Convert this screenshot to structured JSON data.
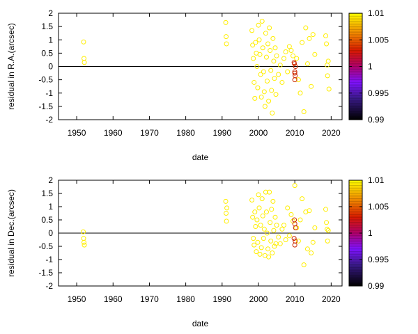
{
  "chart_data": [
    {
      "type": "scatter",
      "xlabel": "date",
      "ylabel": "residual in R.A.(arcsec)",
      "xlim": [
        1945,
        2023
      ],
      "ylim": [
        -2,
        2
      ],
      "xticks": [
        "1950",
        "1960",
        "1970",
        "1980",
        "1990",
        "2000",
        "2010",
        "2020"
      ],
      "yticks": [
        "-2",
        "-1.5",
        "-1",
        "-0.5",
        "0",
        "0.5",
        "1",
        "1.5",
        "2"
      ],
      "colorbar": {
        "min": 0.99,
        "max": 1.01,
        "ticks": [
          "0.99",
          "0.995",
          "1",
          "1.005",
          "1.01"
        ]
      },
      "series": [
        {
          "x": [
            1951.9,
            1952.0,
            1952.1,
            1991.0,
            1991.1,
            1991.2,
            1998.2,
            1998.4,
            1998.6,
            1998.8,
            1999.0,
            1999.2,
            1999.4,
            1999.6,
            1999.8,
            2000.0,
            2000.2,
            2000.4,
            2000.6,
            2000.8,
            2001.0,
            2001.2,
            2001.4,
            2001.6,
            2001.8,
            2002.0,
            2002.2,
            2002.4,
            2002.6,
            2002.8,
            2003.0,
            2003.2,
            2003.4,
            2003.6,
            2003.8,
            2004.0,
            2004.2,
            2004.4,
            2004.6,
            2004.8,
            2005.0,
            2005.5,
            2006.0,
            2006.5,
            2007.0,
            2007.5,
            2008.0,
            2008.5,
            2009.0,
            2009.5,
            2010.5,
            2011.0,
            2011.5,
            2012.0,
            2012.5,
            2013.0,
            2013.5,
            2014.0,
            2014.5,
            2015.0,
            2015.5,
            2018.5,
            2018.7,
            2018.9,
            2019.0,
            2019.2,
            2019.4
          ],
          "y": [
            0.92,
            0.3,
            0.15,
            1.65,
            1.12,
            0.85,
            1.35,
            0.8,
            0.3,
            -0.6,
            -1.2,
            0.9,
            0.5,
            0.0,
            -0.8,
            1.55,
            1.0,
            0.45,
            -0.3,
            -1.15,
            1.7,
            0.7,
            -0.2,
            -0.95,
            -1.5,
            1.25,
            0.35,
            -0.55,
            0.85,
            -1.3,
            1.45,
            0.6,
            -0.15,
            -0.9,
            -1.75,
            1.05,
            0.2,
            -0.45,
            0.7,
            -1.05,
            0.4,
            -0.3,
            0.05,
            -0.6,
            0.3,
            0.55,
            -0.2,
            0.75,
            0.6,
            0.4,
            0.3,
            -0.5,
            -1.0,
            0.9,
            -1.7,
            1.45,
            0.1,
            1.05,
            -0.75,
            1.2,
            0.45,
            1.15,
            0.85,
            0.05,
            -0.35,
            0.2,
            -0.85
          ],
          "z_level": 1.01
        },
        {
          "x": [
            2009.9,
            2010.0,
            2010.1,
            2010.0,
            2010.2,
            2009.8,
            2010.0
          ],
          "y": [
            0.1,
            -0.2,
            -0.35,
            -0.5,
            0.0,
            0.15,
            -0.25
          ],
          "z_level": 1.0
        }
      ]
    },
    {
      "type": "scatter",
      "xlabel": "date",
      "ylabel": "residual in Dec.(arcsec)",
      "xlim": [
        1945,
        2023
      ],
      "ylim": [
        -2,
        2
      ],
      "xticks": [
        "1950",
        "1960",
        "1970",
        "1980",
        "1990",
        "2000",
        "2010",
        "2020"
      ],
      "yticks": [
        "-2",
        "-1.5",
        "-1",
        "-0.5",
        "0",
        "0.5",
        "1",
        "1.5",
        "2"
      ],
      "colorbar": {
        "min": 0.99,
        "max": 1.01,
        "ticks": [
          "0.99",
          "0.995",
          "1",
          "1.005",
          "1.01"
        ]
      },
      "series": [
        {
          "x": [
            1951.8,
            1951.9,
            1952.0,
            1952.1,
            1991.0,
            1991.1,
            1991.2,
            1991.3,
            1998.2,
            1998.4,
            1998.6,
            1998.8,
            1999.0,
            1999.2,
            1999.4,
            1999.6,
            1999.8,
            2000.0,
            2000.2,
            2000.4,
            2000.6,
            2000.8,
            2001.0,
            2001.2,
            2001.4,
            2001.6,
            2001.8,
            2002.0,
            2002.2,
            2002.4,
            2002.6,
            2002.8,
            2003.0,
            2003.2,
            2003.4,
            2003.6,
            2003.8,
            2004.0,
            2004.2,
            2004.4,
            2004.6,
            2004.8,
            2005.0,
            2005.5,
            2006.0,
            2006.5,
            2007.0,
            2007.5,
            2008.0,
            2008.5,
            2009.0,
            2009.5,
            2010.0,
            2010.5,
            2011.0,
            2011.5,
            2012.0,
            2012.5,
            2013.0,
            2013.5,
            2014.0,
            2014.5,
            2015.0,
            2015.5,
            2018.5,
            2018.7,
            2018.9,
            2019.0,
            2019.2
          ],
          "y": [
            0.05,
            -0.2,
            -0.35,
            -0.45,
            1.2,
            0.75,
            0.45,
            0.95,
            1.25,
            0.6,
            -0.2,
            -0.45,
            0.8,
            0.25,
            -0.7,
            0.5,
            -0.35,
            1.45,
            0.95,
            -0.8,
            0.3,
            -0.55,
            1.3,
            0.65,
            -0.2,
            0.15,
            -0.85,
            1.55,
            0.8,
            0.0,
            -0.6,
            -0.9,
            1.55,
            0.4,
            -0.3,
            0.9,
            -0.75,
            1.2,
            0.1,
            -0.5,
            0.6,
            -0.4,
            0.3,
            -0.15,
            -0.4,
            0.15,
            0.3,
            -0.25,
            0.95,
            -0.1,
            0.7,
            0.45,
            1.8,
            0.2,
            -0.3,
            0.5,
            1.3,
            -1.2,
            0.8,
            -0.6,
            0.85,
            -0.75,
            -0.35,
            0.2,
            0.9,
            0.4,
            0.15,
            -0.3,
            0.1
          ],
          "z_level": 1.01
        },
        {
          "x": [
            2009.9,
            2010.0,
            2010.1,
            2010.0,
            2010.2,
            2009.8
          ],
          "y": [
            0.5,
            0.35,
            -0.3,
            -0.45,
            0.2,
            -0.2
          ],
          "z_level": 1.0
        }
      ]
    }
  ]
}
